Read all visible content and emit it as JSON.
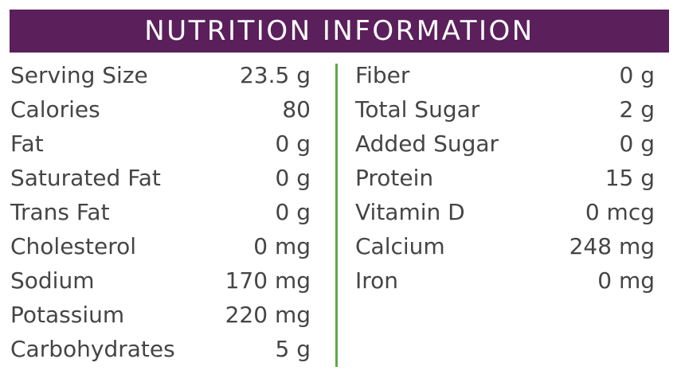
{
  "header": {
    "title": "NUTRITION INFORMATION"
  },
  "columns": [
    {
      "rows": [
        {
          "label": "Serving Size",
          "value": "23.5 g"
        },
        {
          "label": "Calories",
          "value": "80"
        },
        {
          "label": "Fat",
          "value": "0 g"
        },
        {
          "label": "Saturated Fat",
          "value": "0 g"
        },
        {
          "label": "Trans Fat",
          "value": "0 g"
        },
        {
          "label": "Cholesterol",
          "value": "0 mg"
        },
        {
          "label": "Sodium",
          "value": "170 mg"
        },
        {
          "label": "Potassium",
          "value": "220 mg"
        },
        {
          "label": "Carbohydrates",
          "value": "5 g"
        }
      ]
    },
    {
      "rows": [
        {
          "label": "Fiber",
          "value": "0 g"
        },
        {
          "label": "Total Sugar",
          "value": "2 g"
        },
        {
          "label": "Added Sugar",
          "value": "0 g"
        },
        {
          "label": "Protein",
          "value": "15 g"
        },
        {
          "label": "Vitamin D",
          "value": "0 mcg"
        },
        {
          "label": "Calcium",
          "value": "248 mg"
        },
        {
          "label": "Iron",
          "value": "0 mg"
        }
      ]
    }
  ]
}
